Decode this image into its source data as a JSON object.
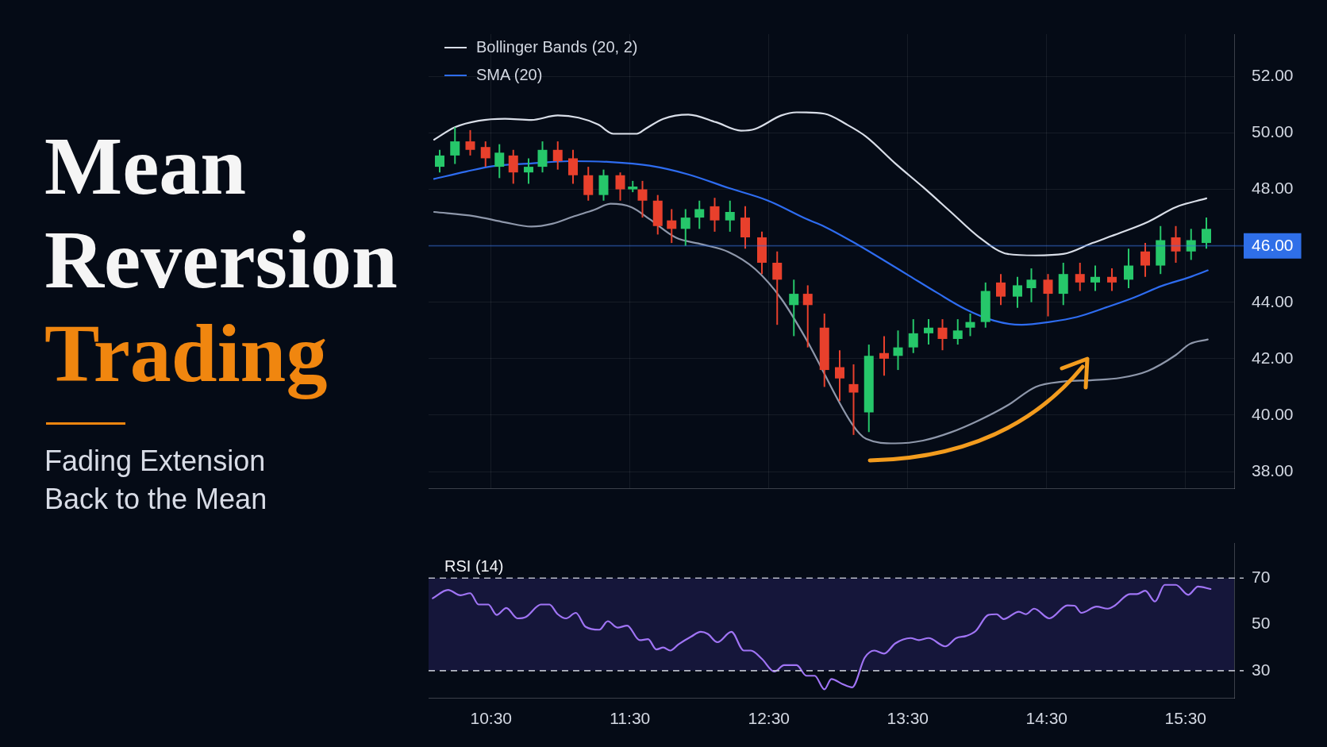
{
  "chart_data": [
    {
      "type": "candlestick",
      "title": "Mean Reversion Trading",
      "subtitle": "Fading Extension Back to the Mean",
      "x": [
        10.13,
        10.24,
        10.35,
        10.46,
        10.56,
        10.66,
        10.77,
        10.87,
        10.98,
        11.09,
        11.2,
        11.31,
        11.43,
        11.52,
        11.59,
        11.7,
        11.8,
        11.9,
        12.0,
        12.11,
        12.22,
        12.33,
        12.45,
        12.56,
        12.68,
        12.78,
        12.9,
        13.01,
        13.11,
        13.22,
        13.33,
        13.43,
        13.54,
        13.65,
        13.75,
        13.86,
        13.95,
        14.06,
        14.17,
        14.29,
        14.39,
        14.51,
        14.62,
        14.74,
        14.85,
        14.97,
        15.09,
        15.21,
        15.32,
        15.43,
        15.54,
        15.65
      ],
      "ohlc": [
        [
          48.8,
          49.4,
          48.6,
          49.2
        ],
        [
          49.2,
          50.2,
          48.9,
          49.7
        ],
        [
          49.7,
          50.1,
          49.2,
          49.4
        ],
        [
          49.5,
          49.7,
          48.8,
          49.1
        ],
        [
          48.8,
          49.6,
          48.4,
          49.3
        ],
        [
          49.2,
          49.4,
          48.2,
          48.6
        ],
        [
          48.6,
          49.1,
          48.2,
          48.8
        ],
        [
          48.8,
          49.7,
          48.6,
          49.4
        ],
        [
          49.4,
          49.7,
          48.7,
          49.0
        ],
        [
          49.1,
          49.4,
          48.2,
          48.5
        ],
        [
          48.5,
          48.8,
          47.6,
          47.8
        ],
        [
          47.8,
          48.7,
          47.6,
          48.5
        ],
        [
          48.5,
          48.6,
          47.6,
          48.0
        ],
        [
          48.0,
          48.3,
          47.9,
          48.1
        ],
        [
          48.0,
          48.3,
          47.0,
          47.6
        ],
        [
          47.6,
          47.8,
          46.4,
          46.7
        ],
        [
          46.9,
          47.3,
          46.1,
          46.6
        ],
        [
          46.6,
          47.3,
          46.0,
          47.0
        ],
        [
          47.0,
          47.6,
          46.6,
          47.3
        ],
        [
          47.4,
          47.7,
          46.5,
          46.9
        ],
        [
          46.9,
          47.6,
          46.5,
          47.2
        ],
        [
          47.0,
          47.4,
          45.9,
          46.3
        ],
        [
          46.3,
          46.5,
          45.0,
          45.4
        ],
        [
          45.4,
          45.8,
          43.2,
          44.8
        ],
        [
          43.9,
          44.8,
          42.8,
          44.3
        ],
        [
          44.3,
          44.6,
          42.4,
          43.9
        ],
        [
          43.1,
          43.6,
          41.0,
          41.6
        ],
        [
          41.7,
          42.3,
          40.5,
          41.3
        ],
        [
          41.1,
          41.8,
          39.3,
          40.8
        ],
        [
          40.1,
          42.5,
          39.4,
          42.1
        ],
        [
          42.2,
          42.8,
          41.4,
          42.0
        ],
        [
          42.1,
          43.0,
          41.6,
          42.4
        ],
        [
          42.4,
          43.4,
          42.2,
          42.9
        ],
        [
          42.9,
          43.4,
          42.5,
          43.1
        ],
        [
          43.1,
          43.4,
          42.3,
          42.7
        ],
        [
          42.7,
          43.4,
          42.5,
          43.0
        ],
        [
          43.1,
          43.6,
          42.8,
          43.3
        ],
        [
          43.3,
          44.7,
          43.1,
          44.4
        ],
        [
          44.7,
          45.0,
          43.9,
          44.2
        ],
        [
          44.2,
          44.9,
          43.8,
          44.6
        ],
        [
          44.5,
          45.2,
          44.0,
          44.8
        ],
        [
          44.8,
          45.0,
          43.5,
          44.3
        ],
        [
          44.3,
          45.4,
          43.9,
          45.0
        ],
        [
          45.0,
          45.4,
          44.4,
          44.7
        ],
        [
          44.7,
          45.3,
          44.4,
          44.9
        ],
        [
          44.9,
          45.2,
          44.4,
          44.7
        ],
        [
          44.8,
          45.9,
          44.5,
          45.3
        ],
        [
          45.8,
          46.1,
          44.9,
          45.3
        ],
        [
          45.3,
          46.7,
          45.0,
          46.2
        ],
        [
          46.3,
          46.7,
          45.4,
          45.8
        ],
        [
          45.8,
          46.6,
          45.5,
          46.2
        ],
        [
          46.1,
          47.0,
          45.9,
          46.6
        ]
      ],
      "colors": [
        "#26c76a",
        "#26c76a",
        "#e8402c",
        "#e8402c",
        "#26c76a",
        "#e8402c",
        "#26c76a",
        "#26c76a",
        "#e8402c",
        "#e8402c",
        "#e8402c",
        "#26c76a",
        "#e8402c",
        "#26c76a",
        "#e8402c",
        "#e8402c",
        "#e8402c",
        "#26c76a",
        "#26c76a",
        "#e8402c",
        "#26c76a",
        "#e8402c",
        "#e8402c",
        "#e8402c",
        "#26c76a",
        "#e8402c",
        "#e8402c",
        "#e8402c",
        "#e8402c",
        "#26c76a",
        "#e8402c",
        "#26c76a",
        "#26c76a",
        "#26c76a",
        "#e8402c",
        "#26c76a",
        "#26c76a",
        "#26c76a",
        "#e8402c",
        "#26c76a",
        "#26c76a",
        "#e8402c",
        "#26c76a",
        "#e8402c",
        "#26c76a",
        "#e8402c",
        "#26c76a",
        "#e8402c",
        "#26c76a",
        "#e8402c",
        "#26c76a",
        "#26c76a"
      ],
      "series": [
        {
          "name": "Bollinger Bands (20, 2)",
          "type": "line",
          "color": "#d9dee8",
          "x": [
            10.09,
            10.24,
            10.41,
            10.6,
            10.79,
            10.98,
            11.13,
            11.27,
            11.38,
            11.55,
            11.61,
            11.74,
            11.92,
            12.12,
            12.3,
            12.4,
            12.59,
            12.7,
            12.9,
            13.06,
            13.2,
            13.41,
            13.61,
            13.81,
            14.01,
            14.22,
            14.42,
            14.62,
            14.83,
            15.03,
            15.23,
            15.43,
            15.65
          ],
          "values": [
            49.76,
            50.2,
            50.43,
            50.5,
            50.46,
            50.62,
            50.54,
            50.3,
            49.97,
            49.97,
            50.14,
            50.5,
            50.65,
            50.38,
            50.08,
            50.14,
            50.62,
            50.73,
            50.68,
            50.3,
            49.87,
            48.92,
            48.08,
            47.2,
            46.32,
            45.71,
            45.66,
            45.71,
            46.1,
            46.46,
            46.85,
            47.37,
            47.68
          ]
        },
        {
          "type": "line",
          "color": "#8e97aa",
          "x": [
            10.09,
            10.38,
            10.6,
            10.79,
            10.94,
            11.1,
            11.24,
            11.36,
            11.51,
            11.64,
            11.83,
            12.02,
            12.21,
            12.4,
            12.59,
            12.77,
            12.9,
            13.1,
            13.2,
            13.41,
            13.61,
            13.81,
            14.01,
            14.22,
            14.42,
            14.62,
            14.83,
            15.03,
            15.23,
            15.43,
            15.53,
            15.66
          ],
          "values": [
            47.2,
            47.05,
            46.83,
            46.68,
            46.78,
            47.05,
            47.27,
            47.49,
            47.37,
            46.95,
            46.29,
            46.05,
            45.78,
            45.18,
            44.12,
            42.68,
            null,
            39.68,
            39.16,
            39.0,
            39.1,
            39.39,
            39.81,
            40.35,
            41.0,
            41.19,
            41.24,
            41.32,
            41.57,
            42.13,
            42.52,
            42.68
          ]
        },
        {
          "name": "SMA (20)",
          "type": "line",
          "color": "#2e6cf0",
          "x": [
            10.09,
            10.32,
            10.51,
            10.79,
            11.07,
            11.36,
            11.64,
            11.92,
            12.21,
            12.49,
            12.77,
            12.9,
            13.1,
            13.31,
            13.51,
            13.71,
            13.91,
            14.12,
            14.32,
            14.52,
            14.72,
            14.93,
            15.13,
            15.33,
            15.53,
            15.66
          ],
          "values": [
            48.37,
            48.63,
            48.82,
            48.92,
            49.0,
            48.97,
            48.84,
            48.53,
            48.05,
            47.61,
            46.95,
            46.68,
            46.15,
            45.54,
            44.94,
            44.34,
            43.77,
            43.35,
            43.2,
            43.3,
            43.48,
            43.82,
            44.17,
            44.58,
            44.89,
            45.13
          ]
        }
      ],
      "xlim": [
        10.05,
        15.85
      ],
      "xticks": [
        {
          "value": 10.5,
          "label": null
        },
        {
          "value": 11.5,
          "label": null
        },
        {
          "value": 12.5,
          "label": null
        },
        {
          "value": 13.5,
          "label": null
        },
        {
          "value": 14.5,
          "label": null
        },
        {
          "value": 15.5,
          "label": null
        }
      ],
      "ylim": [
        37.4,
        53.5
      ],
      "yticks": [
        {
          "value": 38,
          "label": "38.00"
        },
        {
          "value": 40,
          "label": "40.00"
        },
        {
          "value": 42,
          "label": "42.00"
        },
        {
          "value": 44,
          "label": "44.00"
        },
        {
          "value": 46,
          "label": null
        },
        {
          "value": 48,
          "label": "48.00"
        },
        {
          "value": 50,
          "label": "50.00"
        },
        {
          "value": 52,
          "label": "52.00"
        }
      ],
      "tick_labels": "y",
      "grid": true,
      "legend": "top left",
      "ref_lines": [
        {
          "axis": "y",
          "value": 46,
          "label": "46.00",
          "color": "#2f6fe8"
        }
      ]
    },
    {
      "type": "line",
      "title": "RSI (14)",
      "color": "#a074f5",
      "x": [
        10.08,
        10.19,
        10.28,
        10.35,
        10.41,
        10.48,
        10.54,
        10.61,
        10.69,
        10.75,
        10.86,
        10.92,
        10.98,
        11.04,
        11.11,
        11.18,
        11.28,
        11.34,
        11.41,
        11.48,
        11.57,
        11.63,
        11.69,
        11.74,
        11.79,
        11.85,
        11.94,
        12.01,
        12.06,
        12.13,
        12.23,
        12.32,
        12.37,
        12.45,
        12.54,
        12.61,
        12.7,
        12.77,
        12.83,
        12.9,
        12.95,
        13.03,
        13.1,
        13.19,
        13.26,
        13.33,
        13.41,
        13.52,
        13.58,
        13.65,
        13.77,
        13.85,
        13.92,
        13.99,
        14.08,
        14.14,
        14.19,
        14.3,
        14.35,
        14.41,
        14.52,
        14.65,
        14.7,
        14.75,
        14.86,
        14.94,
        14.99,
        15.1,
        15.15,
        15.21,
        15.28,
        15.35,
        15.43,
        15.52,
        15.59,
        15.68
      ],
      "values": [
        61.3,
        64.9,
        62.6,
        63.5,
        58.6,
        58.6,
        54.1,
        57.1,
        52.6,
        53.2,
        58.6,
        58.6,
        54.4,
        52.6,
        55.0,
        49.0,
        47.7,
        51.4,
        48.6,
        49.5,
        43.2,
        43.6,
        39.2,
        40.0,
        38.7,
        41.4,
        44.7,
        46.8,
        45.9,
        42.3,
        46.8,
        38.7,
        38.7,
        35.1,
        29.6,
        32.4,
        32.4,
        27.8,
        27.8,
        21.9,
        26.4,
        24.2,
        22.8,
        35.6,
        38.7,
        37.4,
        41.8,
        44.1,
        43.2,
        44.1,
        40.5,
        44.1,
        45.0,
        47.2,
        54.1,
        54.4,
        52.3,
        55.5,
        54.4,
        56.8,
        52.6,
        58.2,
        58.1,
        55.0,
        57.7,
        56.8,
        58.1,
        63.1,
        63.1,
        64.6,
        59.9,
        67.1,
        67.1,
        62.8,
        66.4,
        65.3
      ],
      "xlim": [
        10.05,
        15.85
      ],
      "xticks": [
        {
          "value": 10.5,
          "label": "10:30"
        },
        {
          "value": 11.5,
          "label": "11:30"
        },
        {
          "value": 12.5,
          "label": "12:30"
        },
        {
          "value": 13.5,
          "label": "13:30"
        },
        {
          "value": 14.5,
          "label": "14:30"
        },
        {
          "value": 15.5,
          "label": "15:30"
        }
      ],
      "ylim": [
        18,
        85
      ],
      "yticks": [
        30,
        50,
        70
      ],
      "ref_lines": [
        {
          "axis": "y",
          "value": 70,
          "line_style": "dashed",
          "color": "#c9ccd6"
        },
        {
          "axis": "y",
          "value": 30,
          "line_style": "dashed",
          "color": "#c9ccd6"
        }
      ],
      "bands": [
        {
          "axis": "y",
          "from": 30,
          "to": 70,
          "color": "#15163a"
        }
      ]
    }
  ]
}
